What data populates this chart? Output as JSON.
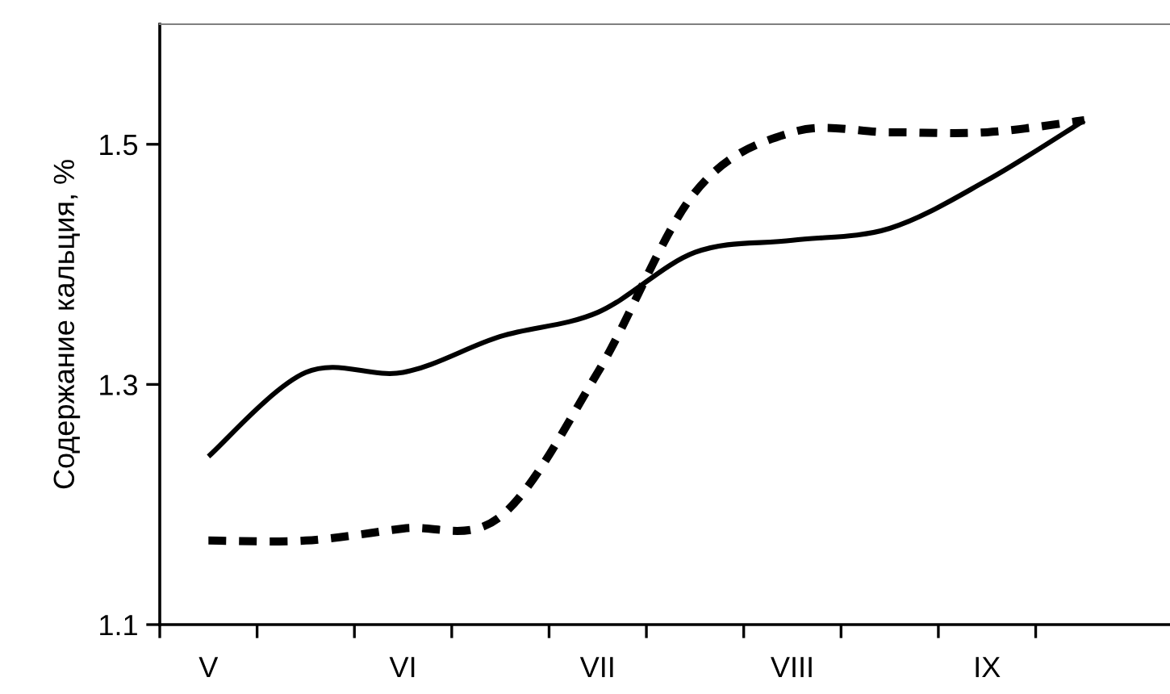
{
  "chart_data": {
    "type": "line",
    "ylabel": "Содержание кальция, %",
    "categories": [
      "V",
      null,
      "VI",
      null,
      "VII",
      null,
      "VIII",
      null,
      "IX",
      null
    ],
    "series": [
      {
        "color": "#000000",
        "line_style": "solid",
        "values": [
          1.24,
          1.31,
          1.31,
          1.34,
          1.36,
          1.41,
          1.42,
          1.43,
          1.47,
          1.52
        ]
      },
      {
        "color": "#000000",
        "line_style": "dashed",
        "values": [
          1.17,
          1.17,
          1.18,
          1.19,
          1.31,
          1.46,
          1.51,
          1.51,
          1.51,
          1.52
        ]
      }
    ],
    "ylim": [
      1.1,
      1.6
    ],
    "yticks": [
      1.1,
      1.3,
      1.5
    ],
    "grid": false,
    "legend": false,
    "marker": "none"
  }
}
